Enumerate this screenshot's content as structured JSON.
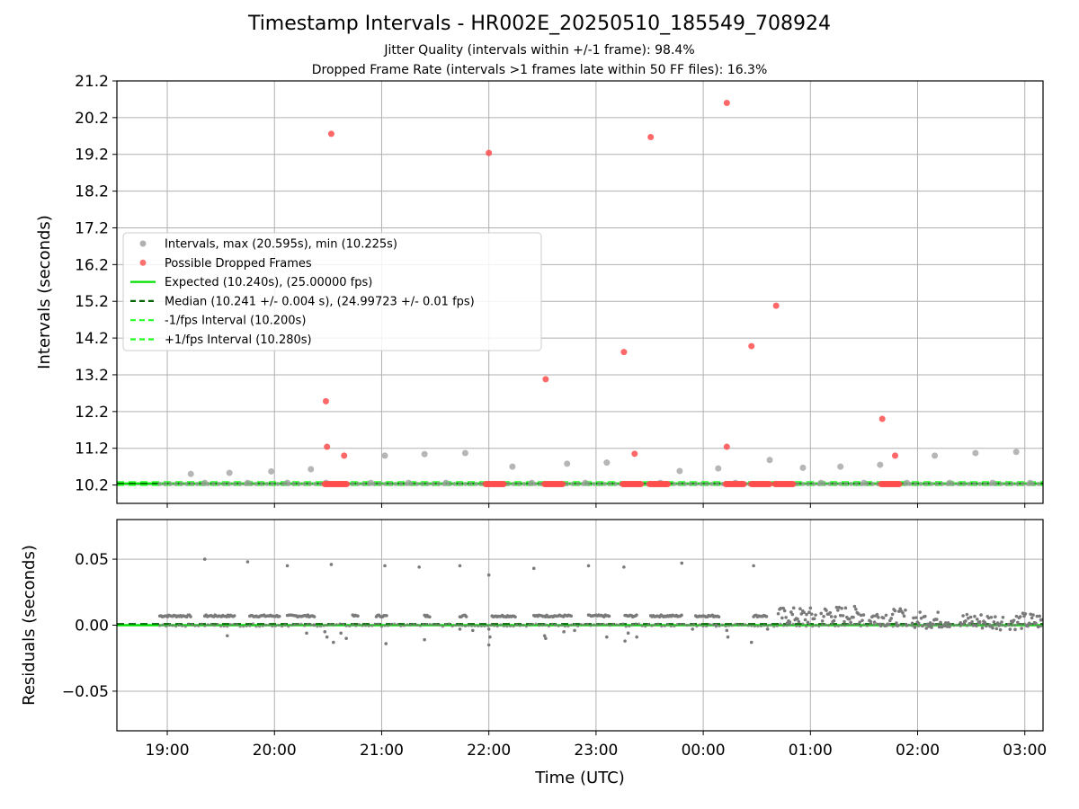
{
  "chart_data": {
    "title": "Timestamp Intervals - HR002E_20250510_185549_708924",
    "subtitle_1": "Jitter Quality (intervals within +/-1 frame): 98.4%",
    "subtitle_2": "Dropped Frame Rate (intervals >1 frames late within 50 FF files): 16.3%",
    "xlabel": "Time (UTC)",
    "x_unit": "hours",
    "x_start": "2025-05-10 18:32 UTC",
    "x_end": "2025-05-11 03:10 UTC",
    "xlim": [
      18.53,
      27.17
    ],
    "x_ticks": [
      {
        "value": 19,
        "label": "19:00"
      },
      {
        "value": 20,
        "label": "20:00"
      },
      {
        "value": 21,
        "label": "21:00"
      },
      {
        "value": 22,
        "label": "22:00"
      },
      {
        "value": 23,
        "label": "23:00"
      },
      {
        "value": 24,
        "label": "00:00"
      },
      {
        "value": 25,
        "label": "01:00"
      },
      {
        "value": 26,
        "label": "02:00"
      },
      {
        "value": 27,
        "label": "03:00"
      }
    ],
    "top_panel": {
      "type": "scatter",
      "ylabel": "Intervals (seconds)",
      "ylim": [
        9.7,
        21.2
      ],
      "y_ticks": [
        "10.2",
        "11.2",
        "12.2",
        "13.2",
        "14.2",
        "15.2",
        "16.2",
        "17.2",
        "18.2",
        "19.2",
        "20.2",
        "21.2"
      ],
      "grid": true,
      "legend_position": "center-left",
      "expected": 10.24,
      "median": 10.241,
      "minus_line": 10.2,
      "plus_line": 10.28,
      "series": [
        {
          "name": "Intervals, max (20.595s), min (10.225s)",
          "color": "#9e9e9e",
          "points": [
            [
              19.22,
              10.5
            ],
            [
              19.58,
              10.53
            ],
            [
              19.97,
              10.57
            ],
            [
              20.34,
              10.63
            ],
            [
              21.03,
              11.0
            ],
            [
              21.4,
              11.04
            ],
            [
              21.78,
              11.07
            ],
            [
              22.22,
              10.7
            ],
            [
              22.73,
              10.78
            ],
            [
              23.1,
              10.81
            ],
            [
              23.78,
              10.58
            ],
            [
              24.14,
              10.65
            ],
            [
              24.62,
              10.88
            ],
            [
              24.93,
              10.67
            ],
            [
              25.28,
              10.7
            ],
            [
              25.65,
              10.75
            ],
            [
              26.16,
              11.0
            ],
            [
              26.54,
              11.07
            ],
            [
              26.92,
              11.1
            ],
            [
              19.35,
              10.26
            ],
            [
              19.75,
              10.26
            ],
            [
              20.12,
              10.26
            ],
            [
              20.48,
              10.26
            ],
            [
              20.9,
              10.26
            ],
            [
              21.25,
              10.26
            ],
            [
              21.6,
              10.26
            ],
            [
              22.4,
              10.26
            ],
            [
              22.9,
              10.26
            ],
            [
              23.6,
              10.26
            ],
            [
              24.3,
              10.26
            ],
            [
              25.1,
              10.26
            ],
            [
              25.5,
              10.26
            ],
            [
              25.9,
              10.26
            ],
            [
              26.3,
              10.26
            ],
            [
              26.7,
              10.26
            ],
            [
              27.05,
              10.26
            ]
          ]
        },
        {
          "name": "Possible Dropped Frames",
          "color": "#ff4d4d",
          "points": [
            [
              20.53,
              19.76
            ],
            [
              22.0,
              19.24
            ],
            [
              23.51,
              19.67
            ],
            [
              24.22,
              20.6
            ],
            [
              20.48,
              12.48
            ],
            [
              22.53,
              13.08
            ],
            [
              23.26,
              13.82
            ],
            [
              24.45,
              13.98
            ],
            [
              24.68,
              15.08
            ],
            [
              25.67,
              12.0
            ],
            [
              20.49,
              11.24
            ],
            [
              20.65,
              11.0
            ],
            [
              23.36,
              11.05
            ],
            [
              24.22,
              11.24
            ],
            [
              25.79,
              11.0
            ]
          ],
          "clusters": [
            [
              20.47,
              20.68
            ],
            [
              21.97,
              22.14
            ],
            [
              22.52,
              22.7
            ],
            [
              23.25,
              23.42
            ],
            [
              23.5,
              23.68
            ],
            [
              24.21,
              24.38
            ],
            [
              24.45,
              24.62
            ],
            [
              24.67,
              24.84
            ],
            [
              25.66,
              25.84
            ]
          ],
          "cluster_y": 10.225
        }
      ]
    },
    "bottom_panel": {
      "type": "scatter",
      "ylabel": "Residuals (seconds)",
      "ylim": [
        -0.08,
        0.08
      ],
      "y_ticks": [
        {
          "value": 0.05,
          "label": "0.05"
        },
        {
          "value": 0.0,
          "label": "0.00"
        },
        {
          "value": -0.05,
          "label": "−0.05"
        }
      ],
      "grid": true,
      "point_color": "#7a7a7a",
      "expected_residual": 0.0,
      "median_residual": 0.001,
      "segments": [
        [
          18.93,
          19.23,
          0.007
        ],
        [
          19.35,
          19.63,
          0.007
        ],
        [
          19.77,
          20.05,
          0.007
        ],
        [
          20.12,
          20.38,
          0.007
        ],
        [
          20.73,
          20.78,
          0.007
        ],
        [
          20.95,
          21.05,
          0.007
        ],
        [
          21.4,
          21.45,
          0.007
        ],
        [
          21.73,
          21.8,
          0.007
        ],
        [
          22.03,
          22.25,
          0.007
        ],
        [
          22.42,
          22.78,
          0.007
        ],
        [
          22.93,
          23.13,
          0.007
        ],
        [
          23.27,
          23.38,
          0.007
        ],
        [
          23.51,
          23.8,
          0.007
        ],
        [
          23.93,
          24.15,
          0.007
        ],
        [
          24.47,
          24.6,
          0.007
        ],
        [
          24.7,
          25.05,
          0.007
        ],
        [
          25.1,
          25.5,
          0.008
        ],
        [
          25.55,
          25.9,
          0.006
        ],
        [
          25.95,
          26.3,
          0.004
        ],
        [
          26.4,
          26.8,
          0.003
        ],
        [
          26.85,
          27.17,
          0.003
        ]
      ],
      "outliers": [
        [
          19.35,
          0.05
        ],
        [
          19.56,
          -0.008
        ],
        [
          19.75,
          0.048
        ],
        [
          20.12,
          0.045
        ],
        [
          20.37,
          0.0
        ],
        [
          20.47,
          -0.005
        ],
        [
          20.49,
          -0.009
        ],
        [
          20.53,
          0.046
        ],
        [
          20.55,
          -0.013
        ],
        [
          20.62,
          -0.006
        ],
        [
          20.67,
          -0.01
        ],
        [
          21.03,
          0.045
        ],
        [
          21.04,
          -0.014
        ],
        [
          21.35,
          0.044
        ],
        [
          21.4,
          -0.011
        ],
        [
          21.73,
          0.045
        ],
        [
          21.73,
          -0.003
        ],
        [
          22.0,
          0.038
        ],
        [
          22.0,
          -0.003
        ],
        [
          22.0,
          -0.015
        ],
        [
          22.01,
          -0.009
        ],
        [
          22.42,
          0.043
        ],
        [
          22.52,
          -0.008
        ],
        [
          22.53,
          -0.01
        ],
        [
          22.7,
          -0.005
        ],
        [
          22.93,
          0.045
        ],
        [
          23.1,
          -0.009
        ],
        [
          23.26,
          0.044
        ],
        [
          23.27,
          -0.012
        ],
        [
          23.3,
          -0.006
        ],
        [
          23.38,
          -0.009
        ],
        [
          23.8,
          0.047
        ],
        [
          24.12,
          0.0
        ],
        [
          24.22,
          -0.004
        ],
        [
          24.23,
          -0.009
        ],
        [
          24.47,
          0.045
        ],
        [
          24.45,
          -0.013
        ],
        [
          24.6,
          -0.003
        ],
        [
          20.3,
          -0.006
        ],
        [
          21.85,
          -0.004
        ],
        [
          22.8,
          -0.004
        ],
        [
          23.9,
          -0.003
        ]
      ]
    },
    "legend": [
      {
        "label": "Intervals, max (20.595s), min (10.225s)",
        "kind": "marker",
        "color": "#9e9e9e"
      },
      {
        "label": "Possible Dropped Frames",
        "kind": "marker",
        "color": "#ff4d4d"
      },
      {
        "label": "Expected (10.240s), (25.00000 fps)",
        "kind": "solid",
        "color": "#00e000"
      },
      {
        "label": "Median (10.241 +/- 0.004 s), (24.99723 +/- 0.01 fps)",
        "kind": "dashed",
        "color": "#006400"
      },
      {
        "label": "-1/fps Interval (10.200s)",
        "kind": "dashed",
        "color": "#22ff22"
      },
      {
        "label": "+1/fps Interval (10.280s)",
        "kind": "dashed",
        "color": "#22ff22"
      }
    ]
  }
}
